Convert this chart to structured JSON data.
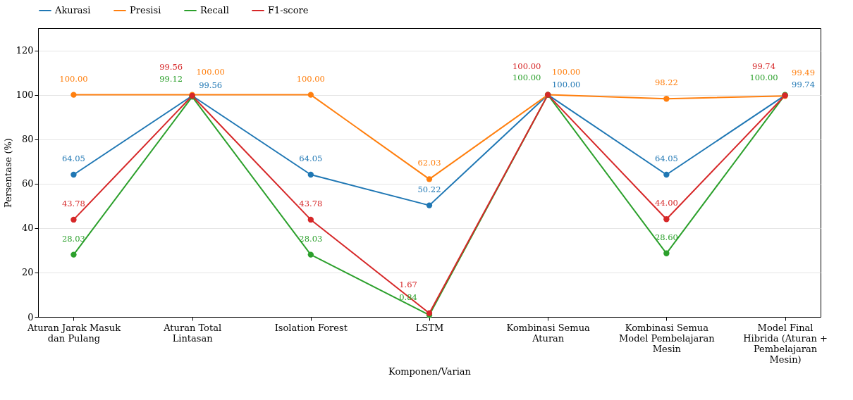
{
  "chart_data": {
    "type": "line",
    "xlabel": "Komponen/Varian",
    "ylabel": "Persentase (%)",
    "categories": [
      "Aturan Jarak Masuk dan Pulang",
      "Aturan Total Lintasan",
      "Isolation Forest",
      "LSTM",
      "Kombinasi Semua Aturan",
      "Kombinasi Semua Model Pembelajaran Mesin",
      "Model Final Hibrida (Aturan + Pembelajaran Mesin)"
    ],
    "series": [
      {
        "name": "Akurasi",
        "color": "#1f77b4",
        "values": [
          64.05,
          99.56,
          64.05,
          50.22,
          100.0,
          64.05,
          99.74
        ],
        "value_labels": [
          "64.05",
          "99.56",
          "64.05",
          "50.22",
          "100.00",
          "64.05",
          "99.74"
        ]
      },
      {
        "name": "Presisi",
        "color": "#ff7f0e",
        "values": [
          100.0,
          100.0,
          100.0,
          62.03,
          100.0,
          98.22,
          99.49
        ],
        "value_labels": [
          "100.00",
          "100.00",
          "100.00",
          "62.03",
          "100.00",
          "98.22",
          "99.49"
        ]
      },
      {
        "name": "Recall",
        "color": "#2ca02c",
        "values": [
          28.03,
          99.12,
          28.03,
          0.84,
          100.0,
          28.6,
          100.0
        ],
        "value_labels": [
          "28.03",
          "99.12",
          "28.03",
          "0.84",
          "100.00",
          "28.60",
          "100.00"
        ]
      },
      {
        "name": "F1-score",
        "color": "#d62728",
        "values": [
          43.78,
          99.56,
          43.78,
          1.67,
          100.0,
          44.0,
          99.74
        ],
        "value_labels": [
          "43.78",
          "99.56",
          "43.78",
          "1.67",
          "100.00",
          "44.00",
          "99.74"
        ]
      }
    ],
    "ylim": [
      0,
      130
    ],
    "yticks": [
      0,
      20,
      40,
      60,
      80,
      100,
      120
    ],
    "grid": "y",
    "legend": "top",
    "marker": "circle",
    "line_style": "solid"
  }
}
